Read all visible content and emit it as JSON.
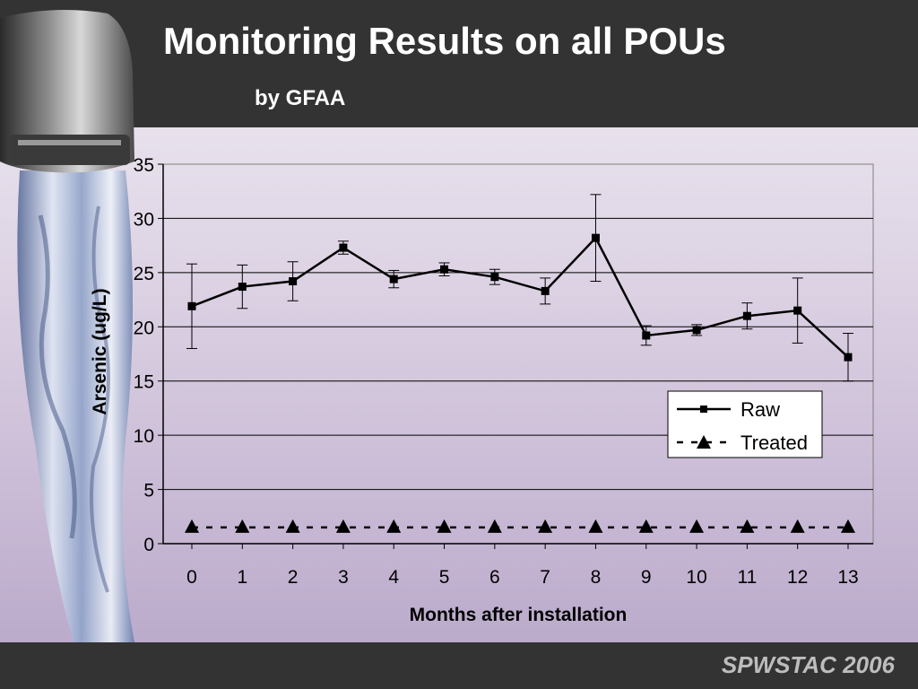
{
  "header": {
    "title": "Monitoring Results on all POUs",
    "subtitle": "by GFAA"
  },
  "footer": {
    "text": "SPWSTAC 2006"
  },
  "colors": {
    "header_bg": "#333333",
    "series": "#000000",
    "footer_text": "#bdbdbd"
  },
  "icons": {
    "faucet": "water-faucet-icon"
  },
  "chart_data": {
    "type": "line",
    "xlabel": "Months after installation",
    "ylabel": "Arsenic (ug/L)",
    "ylim": [
      0,
      35
    ],
    "yticks": [
      0,
      5,
      10,
      15,
      20,
      25,
      30,
      35
    ],
    "x": [
      0,
      1,
      2,
      3,
      4,
      5,
      6,
      7,
      8,
      9,
      10,
      11,
      12,
      13
    ],
    "grid": "horizontal",
    "legend_position": "right",
    "series": [
      {
        "name": "Raw",
        "marker": "square",
        "line": "solid",
        "values": [
          21.9,
          23.7,
          24.2,
          27.3,
          24.4,
          25.3,
          24.6,
          23.3,
          28.2,
          19.2,
          19.7,
          21.0,
          21.5,
          17.2
        ],
        "error": [
          3.9,
          2.0,
          1.8,
          0.6,
          0.8,
          0.6,
          0.7,
          1.2,
          4.0,
          0.9,
          0.5,
          1.2,
          3.0,
          2.2
        ]
      },
      {
        "name": "Treated",
        "marker": "triangle",
        "line": "dashed",
        "values": [
          1.5,
          1.5,
          1.5,
          1.5,
          1.5,
          1.5,
          1.5,
          1.5,
          1.5,
          1.5,
          1.5,
          1.5,
          1.5,
          1.5
        ]
      }
    ]
  }
}
